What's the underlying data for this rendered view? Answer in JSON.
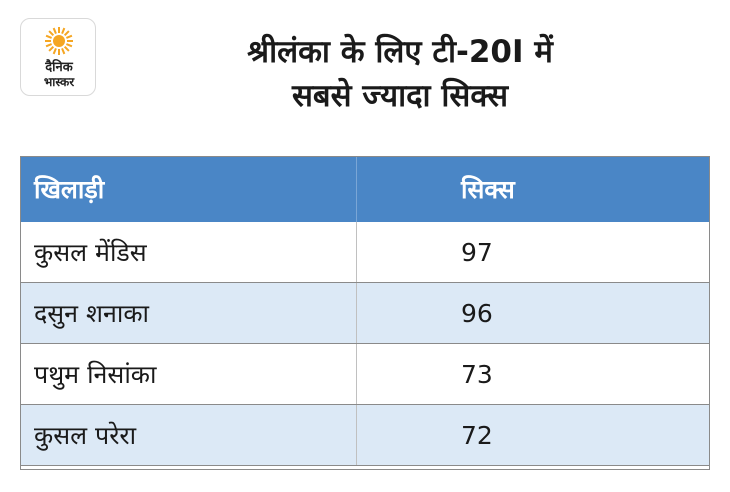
{
  "logo": {
    "line1": "दैनिक",
    "line2": "भास्कर",
    "sun_color": "#f5a623"
  },
  "title": {
    "line1": "श्रीलंका के लिए टी-20I में",
    "line2": "सबसे ज्यादा सिक्स"
  },
  "chart_data": {
    "type": "table",
    "columns": [
      "खिलाड़ी",
      "सिक्स"
    ],
    "rows": [
      {
        "player": "कुसल मेंडिस",
        "sixes": "97"
      },
      {
        "player": "दसुन शनाका",
        "sixes": "96"
      },
      {
        "player": "पथुम निसांका",
        "sixes": "73"
      },
      {
        "player": "कुसल परेरा",
        "sixes": "72"
      }
    ]
  },
  "colors": {
    "header_bg": "#4a86c6",
    "row_alt_bg": "#dce9f6"
  }
}
